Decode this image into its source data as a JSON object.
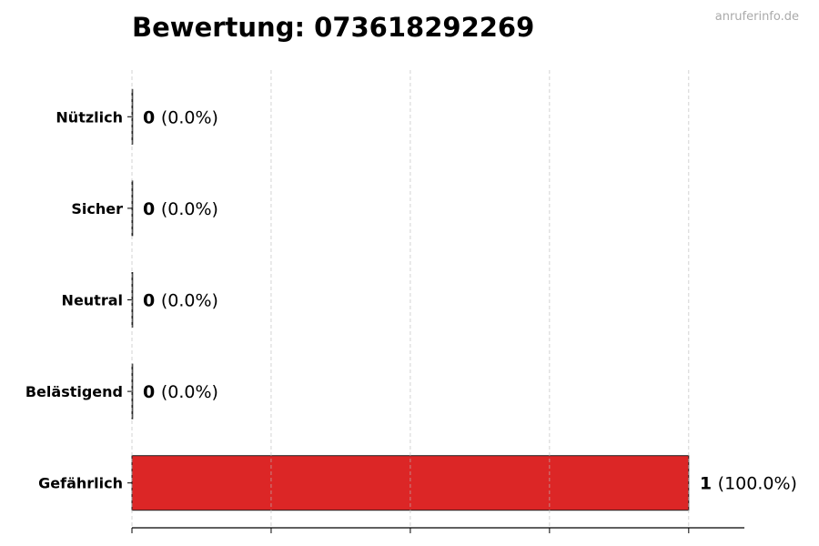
{
  "chart_data": {
    "type": "bar",
    "orientation": "horizontal",
    "title": "Bewertung: 073618292269",
    "watermark": "anruferinfo.de",
    "categories": [
      "Nützlich",
      "Sicher",
      "Neutral",
      "Belästigend",
      "Gefährlich"
    ],
    "values": [
      0,
      0,
      0,
      0,
      1
    ],
    "percent_labels": [
      "(0.0%)",
      "(0.0%)",
      "(0.0%)",
      "(0.0%)",
      "(100.0%)"
    ],
    "colors": [
      "#22c55e",
      "#3b82f6",
      "#9ca3af",
      "#f97316",
      "#dc2626"
    ],
    "xlim": [
      0,
      1.1
    ],
    "xticks": [
      0,
      0.25,
      0.5,
      0.75,
      1
    ],
    "xtick_labels_shown": false,
    "grid": "x dashed",
    "xlabel": "",
    "ylabel": ""
  }
}
